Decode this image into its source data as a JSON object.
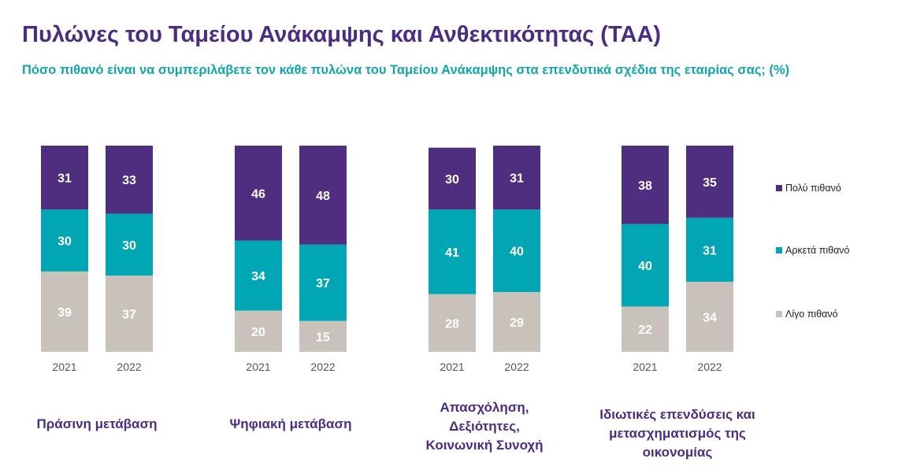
{
  "title": "Πυλώνες του Ταμείου Ανάκαμψης και Ανθεκτικότητας (ΤΑΑ)",
  "subtitle": "Πόσο πιθανό είναι να συμπεριλάβετε τον κάθε πυλώνα του Ταμείου Ανάκαμψης στα επενδυτικά σχέδια της εταιρίας σας; (%)",
  "colors": {
    "Πολύ πιθανό": "#4f2d7f",
    "Αρκετά πιθανό": "#00a6b3",
    "Λίγο πιθανό": "#c9c2bb",
    "title": "#4a2d82",
    "subtitle": "#12a5b0"
  },
  "chart_data": {
    "type": "bar",
    "stacked": true,
    "legend_position": "right",
    "groups": [
      {
        "label": "Πράσινη μετάβαση",
        "label_lines": [
          "Πράσινη μετάβαση"
        ]
      },
      {
        "label": "Ψηφιακή μετάβαση",
        "label_lines": [
          "Ψηφιακή μετάβαση"
        ]
      },
      {
        "label": "Απασχόληση, Δεξιότητες, Κοινωνική Συνοχή",
        "label_lines": [
          "Απασχόληση,",
          "Δεξιότητες,",
          "Κοινωνική Συνοχή"
        ]
      },
      {
        "label": "Ιδιωτικές επενδύσεις και μετασχηματισμός της οικονομίας",
        "label_lines": [
          "Ιδιωτικές επενδύσεις και",
          "μετασχηματισμός της οικονομίας"
        ]
      }
    ],
    "years": [
      "2021",
      "2022"
    ],
    "series": [
      {
        "name": "Λίγο πιθανό",
        "values": [
          [
            39,
            37
          ],
          [
            20,
            15
          ],
          [
            28,
            29
          ],
          [
            22,
            34
          ]
        ]
      },
      {
        "name": "Αρκετά πιθανό",
        "values": [
          [
            30,
            30
          ],
          [
            34,
            37
          ],
          [
            41,
            40
          ],
          [
            40,
            31
          ]
        ]
      },
      {
        "name": "Πολύ πιθανό",
        "values": [
          [
            31,
            33
          ],
          [
            46,
            48
          ],
          [
            30,
            31
          ],
          [
            38,
            35
          ]
        ]
      }
    ],
    "ylim": [
      0,
      100
    ]
  }
}
